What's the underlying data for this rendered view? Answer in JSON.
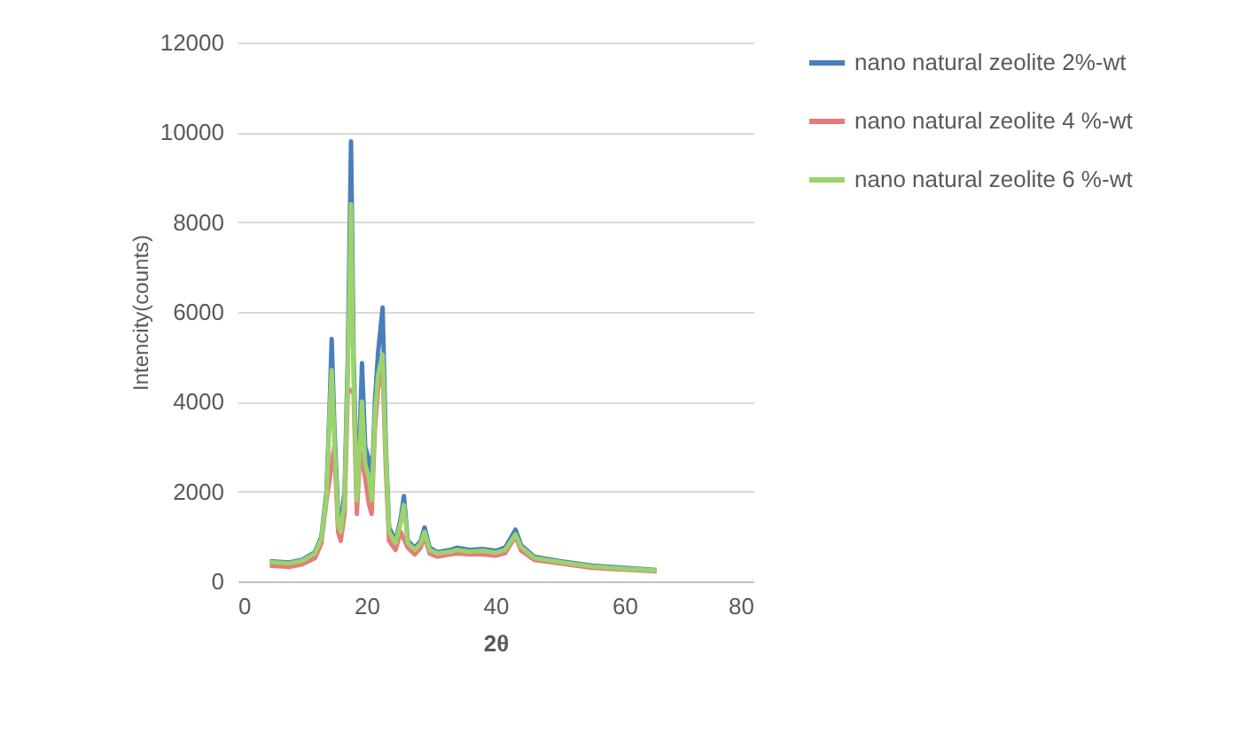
{
  "chart_data": {
    "type": "line",
    "xlabel": "2θ",
    "ylabel": "Intencity(counts)",
    "x": [
      5,
      8,
      10,
      12,
      13,
      13.8,
      14.3,
      14.6,
      15,
      15.6,
      16,
      16.6,
      17.1,
      17.6,
      18,
      18.5,
      19,
      19.3,
      19.8,
      20.4,
      20.8,
      21.3,
      21.8,
      22.5,
      23,
      23.5,
      24.5,
      25.3,
      25.8,
      26.4,
      27.5,
      28.4,
      29,
      29.8,
      31,
      33,
      34,
      36,
      38,
      40,
      41.5,
      43.1,
      44,
      46,
      50,
      55,
      60,
      65
    ],
    "series": [
      {
        "name": "nano natural zeolite 2%-wt",
        "color": "#4a7ebb",
        "values": [
          450,
          420,
          480,
          650,
          1000,
          2000,
          4000,
          5400,
          3500,
          1500,
          1300,
          2000,
          5000,
          9800,
          5000,
          2000,
          3500,
          4860,
          3000,
          2700,
          2000,
          4000,
          5100,
          6100,
          3000,
          1200,
          900,
          1400,
          1900,
          900,
          750,
          900,
          1200,
          750,
          650,
          700,
          750,
          700,
          720,
          680,
          750,
          1150,
          800,
          550,
          450,
          350,
          300,
          250
        ]
      },
      {
        "name": "nano natural zeolite 4 %-wt",
        "color": "#e87a7a",
        "values": [
          350,
          320,
          380,
          520,
          850,
          1800,
          null,
          null,
          3000,
          1100,
          900,
          1500,
          4300,
          null,
          4200,
          1500,
          2900,
          null,
          2300,
          1700,
          1500,
          3400,
          4300,
          4800,
          2500,
          900,
          700,
          1100,
          null,
          750,
          600,
          750,
          1000,
          620,
          550,
          600,
          620,
          600,
          600,
          570,
          630,
          1000,
          680,
          480,
          400,
          300,
          260,
          220
        ]
      },
      {
        "name": "nano natural zeolite 6 %-wt",
        "color": "#9bd36c",
        "values": [
          430,
          400,
          460,
          620,
          950,
          1900,
          3800,
          4700,
          3200,
          1300,
          1100,
          1800,
          4600,
          8400,
          4500,
          1800,
          3100,
          4000,
          2600,
          2300,
          1800,
          3700,
          4600,
          5050,
          2800,
          1100,
          850,
          1300,
          1700,
          850,
          700,
          850,
          1100,
          700,
          620,
          660,
          700,
          660,
          680,
          640,
          700,
          1050,
          760,
          520,
          430,
          330,
          280,
          240
        ]
      }
    ],
    "xlim": [
      0,
      80
    ],
    "xticks": [
      0,
      20,
      40,
      60,
      80
    ],
    "ylim": [
      0,
      12000
    ],
    "yticks": [
      0,
      2000,
      4000,
      6000,
      8000,
      10000,
      12000
    ],
    "grid": "y",
    "legend": "right"
  }
}
